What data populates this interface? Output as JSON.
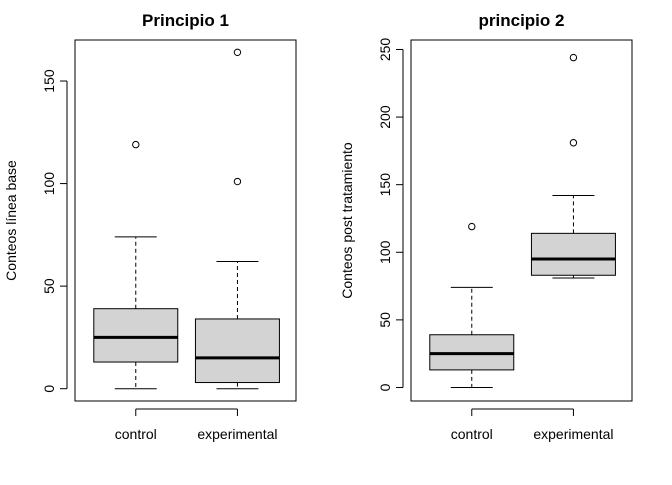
{
  "chart_data": [
    {
      "type": "boxplot",
      "title": "Principio 1",
      "xlabel": "",
      "ylabel": "Conteos línea base",
      "categories": [
        "control",
        "experimental"
      ],
      "ylim": [
        -6,
        170
      ],
      "yticks": [
        0,
        50,
        100,
        150
      ],
      "boxes": [
        {
          "name": "control",
          "whisker_low": 0,
          "q1": 13,
          "median": 25,
          "q3": 39,
          "whisker_high": 74,
          "outliers": [
            119
          ]
        },
        {
          "name": "experimental",
          "whisker_low": 0,
          "q1": 3,
          "median": 15,
          "q3": 34,
          "whisker_high": 62,
          "outliers": [
            101,
            164
          ]
        }
      ],
      "box_fill": "#d3d3d3",
      "grid": false
    },
    {
      "type": "boxplot",
      "title": "principio 2",
      "xlabel": "",
      "ylabel": "Conteos post tratamiento",
      "categories": [
        "control",
        "experimental"
      ],
      "ylim": [
        -10,
        257
      ],
      "yticks": [
        0,
        50,
        100,
        150,
        200,
        250
      ],
      "boxes": [
        {
          "name": "control",
          "whisker_low": 0,
          "q1": 13,
          "median": 25,
          "q3": 39,
          "whisker_high": 74,
          "outliers": [
            119
          ]
        },
        {
          "name": "experimental",
          "whisker_low": 81,
          "q1": 83,
          "median": 95,
          "q3": 114,
          "whisker_high": 142,
          "outliers": [
            181,
            244
          ]
        }
      ],
      "box_fill": "#d3d3d3",
      "grid": false
    }
  ]
}
